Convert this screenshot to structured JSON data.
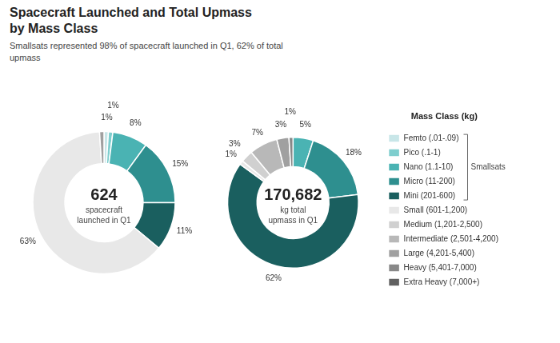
{
  "chart_data": [
    {
      "type": "doughnut",
      "title": "Spacecraft Launched and Total Upmass\nby Mass Class",
      "subtitle": "Smallsats represented 98% of spacecraft launched in Q1, 62% of total\nupmass",
      "center_text": [
        "624",
        "spacecraft",
        "launched in Q1"
      ],
      "categories": [
        "Femto (.01-.09)",
        "Pico (.1-1)",
        "Nano (1.1-10)",
        "Micro (11-200)",
        "Mini (201-600)",
        "Small (601-1,200)",
        "Medium (1,201-2,500)",
        "Intermediate (2,501-4,200)",
        "Large (4,201-5,400)",
        "Heavy (5,401-7,000)",
        "Extra Heavy (7,000+)"
      ],
      "values": [
        1,
        1,
        8,
        15,
        11,
        63,
        0,
        0,
        1,
        0,
        0
      ],
      "value_labels": [
        "1%",
        "1%",
        "8%",
        "15%",
        "11%",
        "63%",
        null,
        null,
        null,
        null,
        null
      ],
      "colors": [
        "#c8e6e8",
        "#7ecece",
        "#4ab3b3",
        "#2e8f8f",
        "#1a5f5f",
        "#e8e8e8",
        "#d0d0d0",
        "#b8b8b8",
        "#a0a0a0",
        "#888888",
        "#606060"
      ],
      "data_labels": true
    },
    {
      "type": "doughnut",
      "center_text": [
        "170,682",
        "kg total",
        "upmass in Q1"
      ],
      "categories": [
        "Femto (.01-.09)",
        "Pico (.1-1)",
        "Nano (1.1-10)",
        "Micro (11-200)",
        "Mini (201-600)",
        "Small (601-1,200)",
        "Medium (1,201-2,500)",
        "Intermediate (2,501-4,200)",
        "Large (4,201-5,400)",
        "Heavy (5,401-7,000)",
        "Extra Heavy (7,000+)"
      ],
      "values": [
        0,
        0,
        5,
        18,
        62,
        1,
        3,
        7,
        3,
        1,
        0
      ],
      "value_labels": [
        null,
        null,
        "5%",
        "18%",
        "62%",
        "1%",
        "3%",
        "7%",
        "3%",
        "1%",
        null
      ],
      "colors": [
        "#c8e6e8",
        "#7ecece",
        "#4ab3b3",
        "#2e8f8f",
        "#1a5f5f",
        "#e8e8e8",
        "#d0d0d0",
        "#b8b8b8",
        "#a0a0a0",
        "#888888",
        "#606060"
      ],
      "data_labels": true,
      "legend": "right",
      "legend_title": "Mass Class (kg)",
      "annotations": [
        {
          "text": "Smallsats",
          "categories": [
            "Femto (.01-.09)",
            "Pico (.1-1)",
            "Nano (1.1-10)",
            "Micro (11-200)",
            "Mini (201-600)"
          ]
        }
      ]
    }
  ]
}
